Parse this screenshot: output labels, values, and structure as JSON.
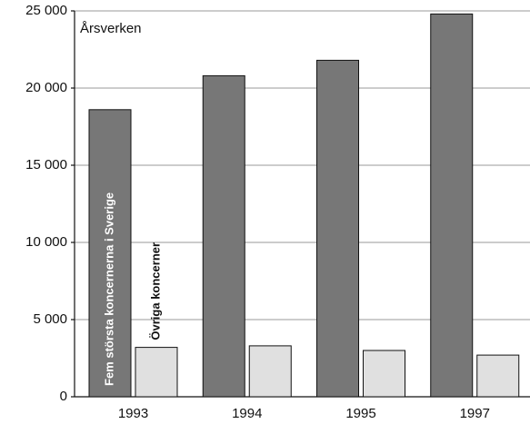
{
  "chart_data": {
    "type": "bar",
    "y_label": "Årsverken",
    "categories": [
      "1993",
      "1994",
      "1995",
      "1997"
    ],
    "series": [
      {
        "name": "Fem största koncernerna i Sverige",
        "color": "#777777",
        "values": [
          18600,
          20800,
          21800,
          24800
        ]
      },
      {
        "name": "Övriga koncerner",
        "color": "#e0e0e0",
        "values": [
          3200,
          3300,
          3000,
          2700
        ]
      }
    ],
    "ylim": [
      0,
      25000
    ],
    "yticks": [
      0,
      {
        "value": 5000,
        "label": "5 000"
      },
      {
        "value": 10000,
        "label": "10 000"
      },
      {
        "value": 15000,
        "label": "15 000"
      },
      {
        "value": 20000,
        "label": "20 000"
      },
      {
        "value": 25000,
        "label": "25 000"
      }
    ],
    "grid": true
  }
}
